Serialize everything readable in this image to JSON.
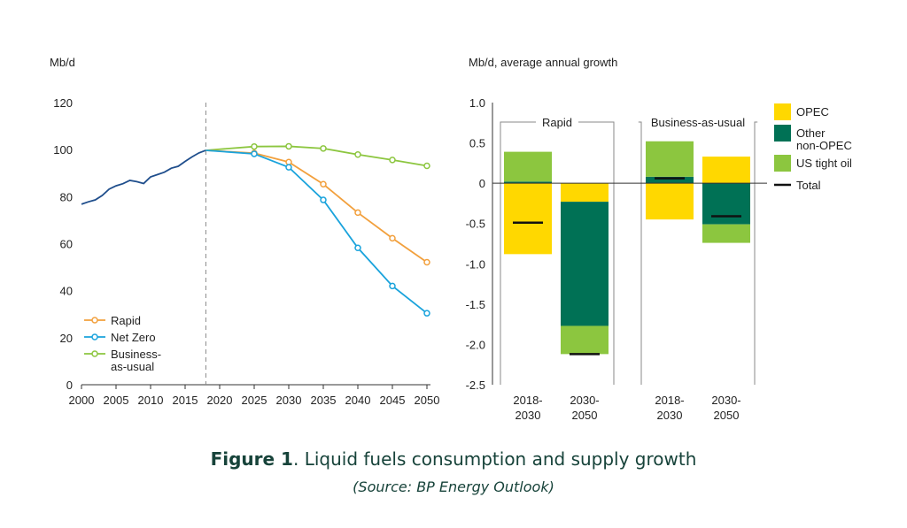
{
  "chart_data": [
    {
      "type": "line",
      "ylabel": "Mb/d",
      "ylim": [
        0,
        120
      ],
      "yticks": [
        0,
        20,
        40,
        60,
        80,
        100,
        120
      ],
      "xlim": [
        2000,
        2050
      ],
      "xticks": [
        2000,
        2005,
        2010,
        2015,
        2020,
        2025,
        2030,
        2035,
        2040,
        2045,
        2050
      ],
      "divider_year": 2018,
      "history": {
        "color": "#1f4e8c",
        "x": [
          2000,
          2001,
          2002,
          2003,
          2004,
          2005,
          2006,
          2007,
          2008,
          2009,
          2010,
          2011,
          2012,
          2013,
          2014,
          2015,
          2016,
          2017,
          2018
        ],
        "y": [
          76.8,
          77.8,
          78.6,
          80.5,
          83.2,
          84.6,
          85.5,
          86.9,
          86.4,
          85.6,
          88.4,
          89.4,
          90.4,
          92.1,
          92.9,
          95.0,
          96.9,
          98.6,
          99.7
        ]
      },
      "series": [
        {
          "name": "Rapid",
          "color": "#f2a03d",
          "x": [
            2018,
            2025,
            2030,
            2035,
            2040,
            2045,
            2050
          ],
          "y": [
            99.7,
            98.5,
            94.7,
            85.3,
            73.2,
            62.3,
            52.1
          ]
        },
        {
          "name": "Net Zero",
          "color": "#1aa3dc",
          "x": [
            2018,
            2025,
            2030,
            2035,
            2040,
            2045,
            2050
          ],
          "y": [
            99.7,
            98.2,
            92.5,
            78.6,
            58.2,
            42.0,
            30.4
          ]
        },
        {
          "name": "Business-as-usual",
          "color": "#8cc63f",
          "x": [
            2018,
            2025,
            2030,
            2035,
            2040,
            2045,
            2050
          ],
          "y": [
            99.7,
            101.3,
            101.4,
            100.5,
            97.9,
            95.6,
            93.1
          ]
        }
      ],
      "legend": [
        {
          "lines": [
            "Rapid"
          ],
          "color": "#f2a03d"
        },
        {
          "lines": [
            "Net Zero"
          ],
          "color": "#1aa3dc"
        },
        {
          "lines": [
            "Business-",
            "as-usual"
          ],
          "color": "#8cc63f"
        }
      ],
      "legend_position": "bottom-left"
    },
    {
      "type": "stacked-bar",
      "ylabel": "Mb/d, average annual growth",
      "ylim": [
        -2.5,
        1.0
      ],
      "yticks": [
        1.0,
        0.5,
        0,
        -0.5,
        -1.0,
        -1.5,
        -2.0,
        -2.5
      ],
      "ytick_labels": [
        "1.0",
        "0.5",
        "0",
        "-0.5",
        "-1.0",
        "-1.5",
        "-2.0",
        "-2.5"
      ],
      "groups": [
        {
          "name": "Rapid",
          "bars": [
            0,
            1
          ]
        },
        {
          "name": "Business-as-usual",
          "bars": [
            2,
            3
          ]
        }
      ],
      "categories": [
        [
          "2018-",
          "2030"
        ],
        [
          "2030-",
          "2050"
        ],
        [
          "2018-",
          "2030"
        ],
        [
          "2030-",
          "2050"
        ]
      ],
      "series": [
        {
          "name": "OPEC",
          "color": "#ffd800",
          "values": [
            -0.88,
            -0.23,
            -0.45,
            0.33
          ]
        },
        {
          "name": "Other non-OPEC",
          "color": "#007155",
          "values": [
            0.02,
            -1.54,
            0.08,
            -0.51
          ]
        },
        {
          "name": "US tight oil",
          "color": "#8cc63f",
          "values": [
            0.37,
            -0.35,
            0.44,
            -0.23
          ]
        }
      ],
      "totals": [
        -0.49,
        -2.12,
        0.06,
        -0.41
      ],
      "legend": [
        {
          "lines": [
            "OPEC"
          ],
          "color": "#ffd800",
          "kind": "box"
        },
        {
          "lines": [
            "Other",
            "non-OPEC"
          ],
          "color": "#007155",
          "kind": "box"
        },
        {
          "lines": [
            "US tight oil"
          ],
          "color": "#8cc63f",
          "kind": "box"
        },
        {
          "lines": [
            "Total"
          ],
          "color": "#111111",
          "kind": "line"
        }
      ],
      "legend_position": "right"
    }
  ],
  "caption": {
    "figure_label": "Figure 1",
    "title": ". Liquid fuels consumption and supply growth",
    "source": "(Source: BP Energy Outlook)"
  }
}
